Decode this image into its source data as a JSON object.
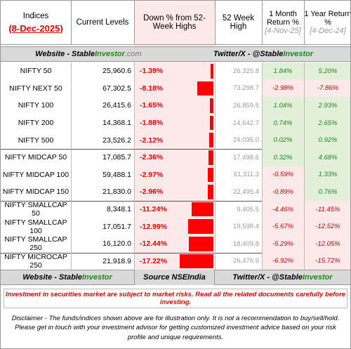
{
  "header": {
    "title": "Indices",
    "date": "(8-Dec-2025)",
    "current": "Current Levels",
    "down": "Down % from 52-Week Highs",
    "high": "52 Week High",
    "m1": "1 Month Return %",
    "m1_date": "[4-Nov-25]",
    "y1": "1 Year Return %",
    "y1_date": "[4-Dec-24]"
  },
  "banner": {
    "website": "Website - Stable ",
    "website_brand": "Investor",
    "website_suffix": " .com",
    "twitter": "Twitter/X - @Stable ",
    "twitter_brand": "Investor"
  },
  "groups": [
    [
      {
        "name": "NIFTY 50",
        "level": "25,960.6",
        "down": {
          "value": -1.39,
          "label": "-1.39%"
        },
        "high": "26,325.8",
        "m1": {
          "value": 1.84,
          "label": "1.84%"
        },
        "y1": {
          "value": 5.2,
          "label": "5.20%"
        }
      },
      {
        "name": "NIFTY NEXT 50",
        "level": "67,302.5",
        "down": {
          "value": -8.18,
          "label": "-8.18%"
        },
        "high": "73,298.7",
        "m1": {
          "value": -2.98,
          "label": "-2.98%"
        },
        "y1": {
          "value": -7.86,
          "label": "-7.86%"
        }
      },
      {
        "name": "NIFTY 100",
        "level": "26,415.6",
        "down": {
          "value": -1.65,
          "label": "-1.65%"
        },
        "high": "26,859.5",
        "m1": {
          "value": 1.04,
          "label": "1.04%"
        },
        "y1": {
          "value": 2.93,
          "label": "2.93%"
        }
      },
      {
        "name": "NIFTY 200",
        "level": "14,368.1",
        "down": {
          "value": -1.88,
          "label": "-1.88%"
        },
        "high": "14,642.7",
        "m1": {
          "value": 0.74,
          "label": "0.74%"
        },
        "y1": {
          "value": 2.65,
          "label": "2.65%"
        }
      },
      {
        "name": "NIFTY 500",
        "level": "23,526.2",
        "down": {
          "value": -2.12,
          "label": "-2.12%"
        },
        "high": "24,035.0",
        "m1": {
          "value": 0.02,
          "label": "0.02%"
        },
        "y1": {
          "value": 0.92,
          "label": "0.92%"
        }
      }
    ],
    [
      {
        "name": "NIFTY MIDCAP 50",
        "level": "17,085.7",
        "down": {
          "value": -2.36,
          "label": "-2.36%"
        },
        "high": "17,498.6",
        "m1": {
          "value": 0.32,
          "label": "0.32%"
        },
        "y1": {
          "value": 4.68,
          "label": "4.68%"
        }
      },
      {
        "name": "NIFTY MIDCAP 100",
        "level": "59,488.1",
        "down": {
          "value": -2.97,
          "label": "-2.97%"
        },
        "high": "61,311.3",
        "m1": {
          "value": -0.59,
          "label": "-0.59%"
        },
        "y1": {
          "value": 1.33,
          "label": "1.33%"
        }
      },
      {
        "name": "NIFTY MIDCAP 150",
        "level": "21,830.0",
        "down": {
          "value": -2.96,
          "label": "-2.96%"
        },
        "high": "22,495.4",
        "m1": {
          "value": -0.89,
          "label": "-0.89%"
        },
        "y1": {
          "value": 0.76,
          "label": "0.76%"
        }
      }
    ],
    [
      {
        "name": "NIFTY SMALLCAP 50",
        "level": "8,348.1",
        "down": {
          "value": -11.24,
          "label": "-11.24%"
        },
        "high": "9,405.5",
        "m1": {
          "value": -4.46,
          "label": "-4.46%"
        },
        "y1": {
          "value": -11.45,
          "label": "-11.45%"
        }
      },
      {
        "name": "NIFTY SMALLCAP 100",
        "level": "17,051.7",
        "down": {
          "value": -12.99,
          "label": "-12.99%"
        },
        "high": "19,598.4",
        "m1": {
          "value": -5.67,
          "label": "-5.67%"
        },
        "y1": {
          "value": -12.52,
          "label": "-12.52%"
        }
      },
      {
        "name": "NIFTY SMALLCAP 250",
        "level": "16,120.0",
        "down": {
          "value": -12.44,
          "label": "-12.44%"
        },
        "high": "18,409.8",
        "m1": {
          "value": -5.29,
          "label": "-5.29%"
        },
        "y1": {
          "value": -12.05,
          "label": "-12.05%"
        }
      }
    ],
    [
      {
        "name": "NIFTY MICROCAP 250",
        "level": "21,918.9",
        "down": {
          "value": -17.22,
          "label": "-17.22%"
        },
        "high": "26,476.9",
        "m1": {
          "value": -6.92,
          "label": "-6.92%"
        },
        "y1": {
          "value": -15.72,
          "label": "-15.72%"
        }
      }
    ]
  ],
  "footer": {
    "website": "Website - Stable ",
    "website_brand": "Investor",
    "source": "Source NSEIndia",
    "twitter": "Twitter/X - @Stable ",
    "twitter_brand": "Investor"
  },
  "warning": "Investment in securities market are subject to market risks. Read all the related documents carefully before investing.",
  "disclaimer": "Disclaimer - The funds/indices shown above are for illustration only. It is not a recommendation to buy/sell/hold. Please get in touch with your investment advisor for getting customized investment advice based on your risk profile and unique requirements."
}
